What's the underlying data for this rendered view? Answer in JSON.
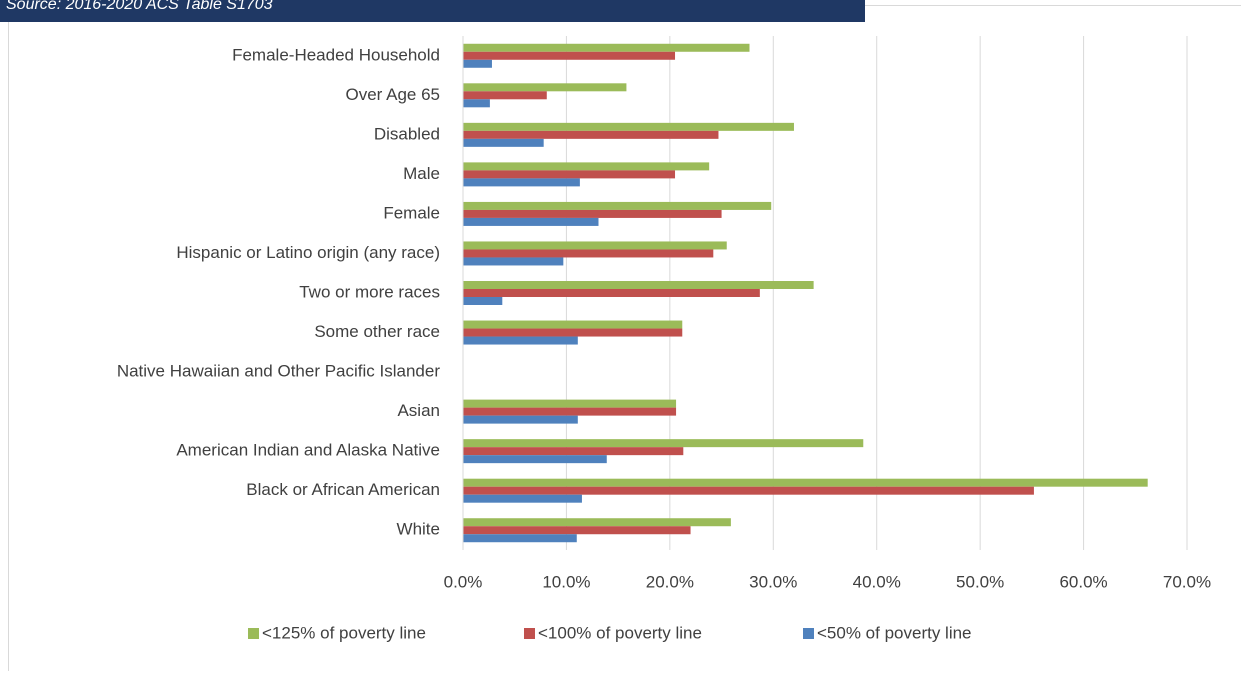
{
  "chart_data": {
    "type": "hbar",
    "subtitle": "Source: 2016-2020 ACS Table S1703",
    "categories": [
      "Female-Headed Household",
      "Over Age 65",
      "Disabled",
      "Male",
      "Female",
      "Hispanic or Latino origin (any race)",
      "Two or more races",
      "Some other race",
      "Native Hawaiian and Other Pacific Islander",
      "Asian",
      "American Indian and Alaska Native",
      "Black or African American",
      "White"
    ],
    "series": [
      {
        "name": "<125% of poverty line",
        "color": "#9bbb59",
        "values": [
          27.7,
          15.8,
          32.0,
          23.8,
          29.8,
          25.5,
          33.9,
          21.2,
          null,
          20.6,
          38.7,
          66.2,
          25.9
        ]
      },
      {
        "name": "<100% of poverty line",
        "color": "#c0504d",
        "values": [
          20.5,
          8.1,
          24.7,
          20.5,
          25.0,
          24.2,
          28.7,
          21.2,
          null,
          20.6,
          21.3,
          55.2,
          22.0
        ]
      },
      {
        "name": "<50% of poverty line",
        "color": "#4f81bd",
        "values": [
          2.8,
          2.6,
          7.8,
          11.3,
          13.1,
          9.7,
          3.8,
          11.1,
          null,
          11.1,
          13.9,
          11.5,
          11.0
        ]
      }
    ],
    "xlim": [
      0,
      70
    ],
    "xticks": [
      {
        "value": 0,
        "label": "0.0%"
      },
      {
        "value": 10,
        "label": "10.0%"
      },
      {
        "value": 20,
        "label": "20.0%"
      },
      {
        "value": 30,
        "label": "30.0%"
      },
      {
        "value": 40,
        "label": "40.0%"
      },
      {
        "value": 50,
        "label": "50.0%"
      },
      {
        "value": 60,
        "label": "60.0%"
      },
      {
        "value": 70,
        "label": "70.0%"
      }
    ],
    "grid": true,
    "legend": "bottom"
  }
}
